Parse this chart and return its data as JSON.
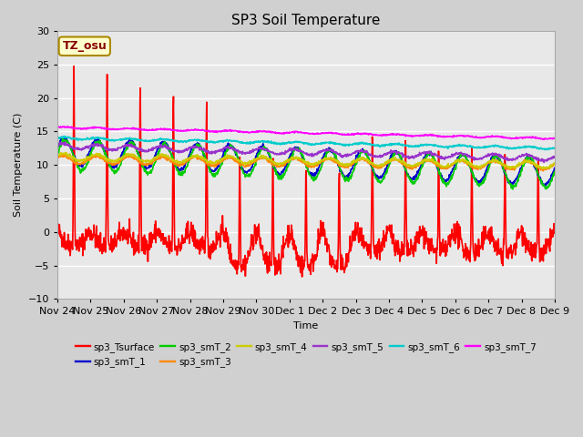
{
  "title": "SP3 Soil Temperature",
  "ylabel": "Soil Temperature (C)",
  "xlabel": "Time",
  "ylim": [
    -10,
    30
  ],
  "fig_bg_color": "#d0d0d0",
  "plot_bg_color": "#e8e8e8",
  "annotation_text": "TZ_osu",
  "annotation_bg": "#ffffcc",
  "annotation_border": "#aa8800",
  "legend_entries": [
    {
      "label": "sp3_Tsurface",
      "color": "#ff0000",
      "lw": 1.2
    },
    {
      "label": "sp3_smT_1",
      "color": "#0000cc",
      "lw": 1.2
    },
    {
      "label": "sp3_smT_2",
      "color": "#00cc00",
      "lw": 1.2
    },
    {
      "label": "sp3_smT_3",
      "color": "#ff8800",
      "lw": 1.2
    },
    {
      "label": "sp3_smT_4",
      "color": "#cccc00",
      "lw": 1.2
    },
    {
      "label": "sp3_smT_5",
      "color": "#9933cc",
      "lw": 1.2
    },
    {
      "label": "sp3_smT_6",
      "color": "#00cccc",
      "lw": 1.2
    },
    {
      "label": "sp3_smT_7",
      "color": "#ff00ff",
      "lw": 1.2
    }
  ],
  "xtick_labels": [
    "Nov 24",
    "Nov 25",
    "Nov 26",
    "Nov 27",
    "Nov 28",
    "Nov 29",
    "Nov 30",
    "Dec 1",
    "Dec 2",
    "Dec 3",
    "Dec 4",
    "Dec 5",
    "Dec 6",
    "Dec 7",
    "Dec 8",
    "Dec 9"
  ],
  "num_points": 1440,
  "grid_color": "#ffffff",
  "grid_lw": 1.0
}
